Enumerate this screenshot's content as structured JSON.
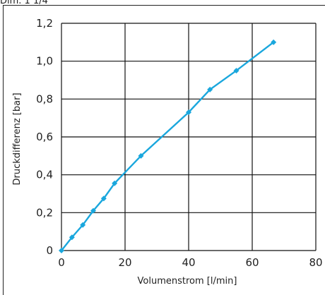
{
  "header": {
    "top_text": "Dim. 1 1/4"
  },
  "chart_data": {
    "type": "line",
    "title": "",
    "xlabel": "Volumenstrom [l/min]",
    "ylabel": "Druckdifferenz [bar]",
    "xlim": [
      0,
      80
    ],
    "ylim": [
      0,
      1.2
    ],
    "x_ticks": [
      0,
      20,
      40,
      60,
      80
    ],
    "x_tick_labels": [
      "0",
      "20",
      "40",
      "60",
      "80"
    ],
    "y_ticks": [
      0,
      0.2,
      0.4,
      0.6,
      0.8,
      1.0,
      1.2
    ],
    "y_tick_labels": [
      "0",
      "0,2",
      "0,4",
      "0,6",
      "0,8",
      "1,0",
      "1,2"
    ],
    "grid": true,
    "line_color": "#1aa7dd",
    "marker": "diamond",
    "series": [
      {
        "x": [
          0,
          3.3,
          6.7,
          10,
          13.3,
          16.7,
          25,
          40,
          46.7,
          55,
          66.7
        ],
        "y": [
          0,
          0.07,
          0.135,
          0.21,
          0.275,
          0.355,
          0.5,
          0.73,
          0.85,
          0.95,
          1.1
        ]
      }
    ]
  }
}
